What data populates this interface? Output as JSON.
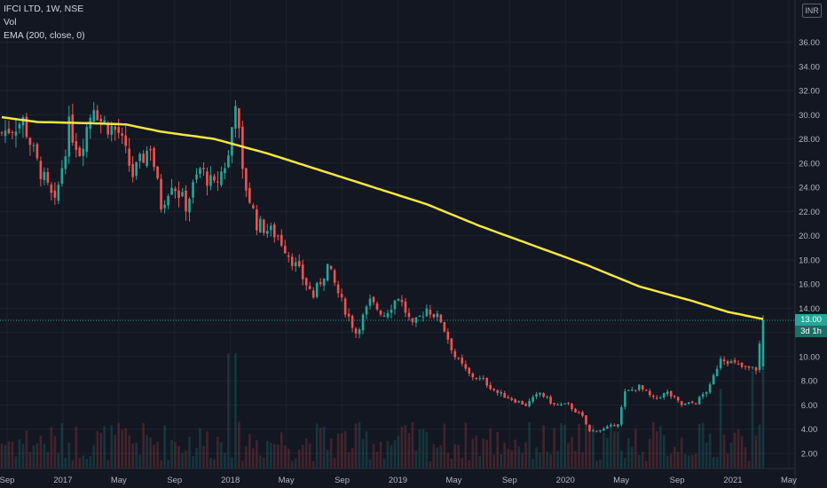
{
  "legend": {
    "symbol": "IFCI LTD, 1W, NSE",
    "volume": "Vol",
    "ema": "EMA (200, close, 0)"
  },
  "currency": "INR",
  "last_price_label": "13.00",
  "countdown_label": "3d 1h",
  "colors": {
    "background": "#131722",
    "up": "#26a69a",
    "down": "#ef5350",
    "ema": "#f5e642",
    "grid": "#1e222d",
    "text": "#b2b5be"
  },
  "chart_data": {
    "type": "candlestick",
    "title": "IFCI LTD, 1W, NSE",
    "ylim": [
      0,
      38
    ],
    "y_ticks": [
      "2.00",
      "4.00",
      "6.00",
      "8.00",
      "10.00",
      "12.00",
      "14.00",
      "16.00",
      "18.00",
      "20.00",
      "22.00",
      "24.00",
      "26.00",
      "28.00",
      "30.00",
      "32.00",
      "34.00",
      "36.00"
    ],
    "x_ticks": [
      "Sep",
      "2017",
      "May",
      "Sep",
      "2018",
      "May",
      "Sep",
      "2019",
      "May",
      "Sep",
      "2020",
      "May",
      "Sep",
      "2021",
      "May"
    ],
    "x_range": [
      "2016-09",
      "2021-05"
    ],
    "price_anchors": [
      {
        "t": 0,
        "v": 28.5
      },
      {
        "t": 6,
        "v": 29.5
      },
      {
        "t": 10,
        "v": 26.0
      },
      {
        "t": 15,
        "v": 22.5
      },
      {
        "t": 19,
        "v": 29.0
      },
      {
        "t": 22,
        "v": 27.0
      },
      {
        "t": 26,
        "v": 31.0
      },
      {
        "t": 28,
        "v": 29.5
      },
      {
        "t": 33,
        "v": 28.5
      },
      {
        "t": 37,
        "v": 25.0
      },
      {
        "t": 42,
        "v": 27.5
      },
      {
        "t": 45,
        "v": 22.5
      },
      {
        "t": 48,
        "v": 24.5
      },
      {
        "t": 52,
        "v": 22.5
      },
      {
        "t": 56,
        "v": 25.5
      },
      {
        "t": 60,
        "v": 24.0
      },
      {
        "t": 64,
        "v": 26.5
      },
      {
        "t": 66,
        "v": 31.5
      },
      {
        "t": 68,
        "v": 25.0
      },
      {
        "t": 72,
        "v": 21.0
      },
      {
        "t": 78,
        "v": 20.0
      },
      {
        "t": 84,
        "v": 17.0
      },
      {
        "t": 88,
        "v": 15.0
      },
      {
        "t": 92,
        "v": 17.5
      },
      {
        "t": 96,
        "v": 14.5
      },
      {
        "t": 100,
        "v": 12.0
      },
      {
        "t": 104,
        "v": 14.5
      },
      {
        "t": 108,
        "v": 13.5
      },
      {
        "t": 112,
        "v": 15.0
      },
      {
        "t": 116,
        "v": 12.5
      },
      {
        "t": 120,
        "v": 14.0
      },
      {
        "t": 124,
        "v": 13.0
      },
      {
        "t": 128,
        "v": 10.0
      },
      {
        "t": 132,
        "v": 8.5
      },
      {
        "t": 136,
        "v": 8.0
      },
      {
        "t": 140,
        "v": 7.0
      },
      {
        "t": 144,
        "v": 6.5
      },
      {
        "t": 148,
        "v": 6.0
      },
      {
        "t": 152,
        "v": 7.0
      },
      {
        "t": 156,
        "v": 6.0
      },
      {
        "t": 160,
        "v": 6.0
      },
      {
        "t": 164,
        "v": 5.0
      },
      {
        "t": 166,
        "v": 3.8
      },
      {
        "t": 170,
        "v": 4.0
      },
      {
        "t": 174,
        "v": 4.5
      },
      {
        "t": 176,
        "v": 7.0
      },
      {
        "t": 180,
        "v": 7.5
      },
      {
        "t": 184,
        "v": 6.5
      },
      {
        "t": 188,
        "v": 7.0
      },
      {
        "t": 192,
        "v": 6.0
      },
      {
        "t": 196,
        "v": 6.2
      },
      {
        "t": 200,
        "v": 7.5
      },
      {
        "t": 203,
        "v": 10.0
      },
      {
        "t": 206,
        "v": 9.5
      },
      {
        "t": 210,
        "v": 9.0
      },
      {
        "t": 213,
        "v": 9.0
      },
      {
        "t": 215,
        "v": 13.0
      }
    ],
    "ema_200": [
      {
        "t": 0,
        "v": 29.8
      },
      {
        "t": 10,
        "v": 29.4
      },
      {
        "t": 25,
        "v": 29.3
      },
      {
        "t": 35,
        "v": 29.2
      },
      {
        "t": 45,
        "v": 28.6
      },
      {
        "t": 60,
        "v": 28.0
      },
      {
        "t": 75,
        "v": 26.8
      },
      {
        "t": 90,
        "v": 25.4
      },
      {
        "t": 105,
        "v": 24.0
      },
      {
        "t": 120,
        "v": 22.6
      },
      {
        "t": 135,
        "v": 20.8
      },
      {
        "t": 150,
        "v": 19.2
      },
      {
        "t": 165,
        "v": 17.6
      },
      {
        "t": 180,
        "v": 15.8
      },
      {
        "t": 195,
        "v": 14.6
      },
      {
        "t": 205,
        "v": 13.7
      },
      {
        "t": 215,
        "v": 13.1
      }
    ],
    "last_price": 13.0
  }
}
